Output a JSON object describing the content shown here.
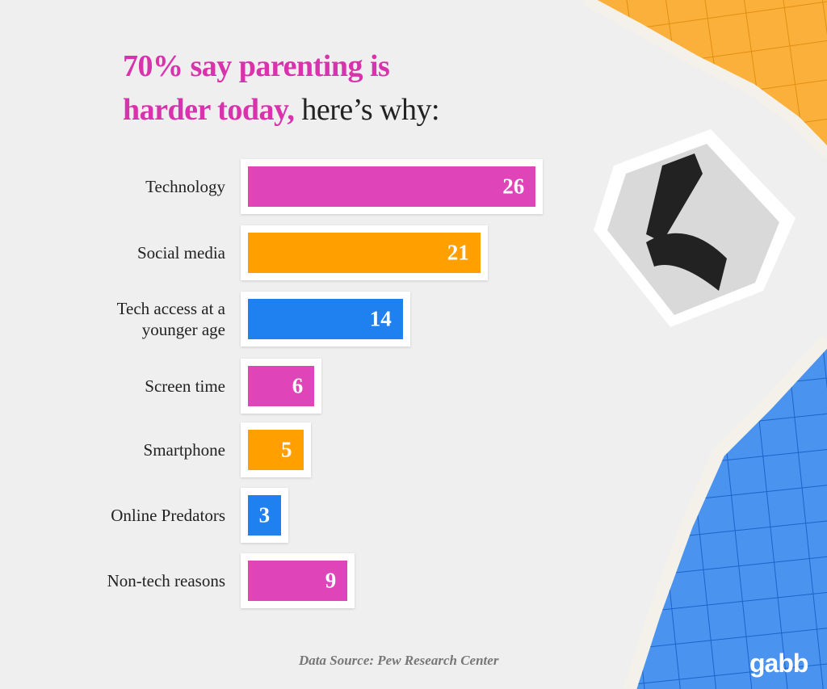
{
  "chart_data": {
    "type": "bar",
    "orientation": "horizontal",
    "title_highlight": [
      "70% say parenting is",
      "harder today,"
    ],
    "title_rest": "here’s why:",
    "categories": [
      "Technology",
      "Social media",
      "Tech access at a younger age",
      "Screen time",
      "Smartphone",
      "Online Predators",
      "Non-tech reasons"
    ],
    "values": [
      26,
      21,
      14,
      6,
      5,
      3,
      9
    ],
    "colors": [
      "#df44b9",
      "#ffa000",
      "#1f80f0",
      "#df44b9",
      "#ffa000",
      "#1f80f0",
      "#df44b9"
    ],
    "source": "Data Source: Pew Research Center",
    "logo": "gabb"
  }
}
